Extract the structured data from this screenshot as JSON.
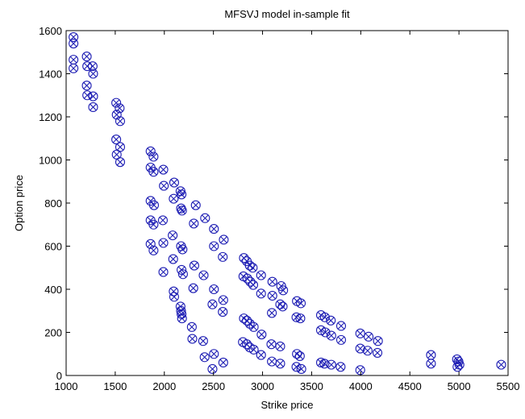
{
  "chart_data": {
    "type": "scatter",
    "title": "MFSVJ model in-sample fit",
    "xlabel": "Strike price",
    "ylabel": "Option price",
    "xlim": [
      1000,
      5500
    ],
    "ylim": [
      0,
      1600
    ],
    "xticks": [
      1000,
      1500,
      2000,
      2500,
      3000,
      3500,
      4000,
      4500,
      5000,
      5500
    ],
    "yticks": [
      0,
      200,
      400,
      600,
      800,
      1000,
      1200,
      1400,
      1600
    ],
    "grid": false,
    "legend": "none",
    "marker": "circle-x",
    "marker_color": "#1f1fb4",
    "series": [
      {
        "points": [
          [
            1075,
            1570
          ],
          [
            1075,
            1540
          ],
          [
            1075,
            1465
          ],
          [
            1075,
            1425
          ],
          [
            1210,
            1480
          ],
          [
            1215,
            1435
          ],
          [
            1210,
            1345
          ],
          [
            1215,
            1300
          ],
          [
            1270,
            1435
          ],
          [
            1275,
            1400
          ],
          [
            1275,
            1295
          ],
          [
            1275,
            1245
          ],
          [
            1510,
            1265
          ],
          [
            1545,
            1240
          ],
          [
            1515,
            1210
          ],
          [
            1550,
            1180
          ],
          [
            1510,
            1095
          ],
          [
            1550,
            1060
          ],
          [
            1515,
            1025
          ],
          [
            1550,
            990
          ],
          [
            1860,
            1040
          ],
          [
            1890,
            1015
          ],
          [
            1860,
            965
          ],
          [
            1890,
            945
          ],
          [
            1990,
            955
          ],
          [
            1995,
            880
          ],
          [
            2100,
            895
          ],
          [
            2165,
            855
          ],
          [
            2175,
            840
          ],
          [
            2095,
            820
          ],
          [
            2170,
            775
          ],
          [
            2180,
            765
          ],
          [
            2320,
            790
          ],
          [
            2415,
            730
          ],
          [
            2300,
            705
          ],
          [
            2505,
            680
          ],
          [
            2605,
            630
          ],
          [
            2505,
            600
          ],
          [
            2595,
            550
          ],
          [
            1860,
            810
          ],
          [
            1895,
            790
          ],
          [
            1860,
            720
          ],
          [
            1890,
            700
          ],
          [
            1985,
            720
          ],
          [
            2085,
            650
          ],
          [
            2170,
            600
          ],
          [
            2185,
            585
          ],
          [
            2090,
            540
          ],
          [
            2175,
            490
          ],
          [
            2190,
            470
          ],
          [
            2305,
            510
          ],
          [
            2400,
            465
          ],
          [
            2295,
            405
          ],
          [
            2505,
            400
          ],
          [
            2600,
            350
          ],
          [
            2490,
            330
          ],
          [
            2595,
            295
          ],
          [
            1860,
            610
          ],
          [
            1890,
            580
          ],
          [
            1990,
            615
          ],
          [
            1990,
            480
          ],
          [
            2095,
            390
          ],
          [
            2100,
            365
          ],
          [
            2165,
            320
          ],
          [
            2170,
            300
          ],
          [
            2175,
            285
          ],
          [
            2180,
            265
          ],
          [
            2280,
            225
          ],
          [
            2285,
            170
          ],
          [
            2395,
            160
          ],
          [
            2505,
            100
          ],
          [
            2410,
            85
          ],
          [
            2600,
            60
          ],
          [
            2490,
            30
          ],
          [
            2810,
            545
          ],
          [
            2840,
            530
          ],
          [
            2870,
            510
          ],
          [
            2900,
            500
          ],
          [
            2985,
            465
          ],
          [
            2805,
            460
          ],
          [
            2845,
            450
          ],
          [
            2875,
            435
          ],
          [
            2905,
            420
          ],
          [
            2985,
            380
          ],
          [
            3100,
            435
          ],
          [
            3190,
            415
          ],
          [
            3210,
            395
          ],
          [
            3100,
            370
          ],
          [
            3180,
            330
          ],
          [
            3205,
            320
          ],
          [
            3095,
            290
          ],
          [
            3350,
            345
          ],
          [
            3390,
            335
          ],
          [
            3345,
            270
          ],
          [
            3385,
            265
          ],
          [
            3595,
            280
          ],
          [
            3635,
            270
          ],
          [
            3695,
            255
          ],
          [
            3800,
            230
          ],
          [
            3595,
            210
          ],
          [
            3640,
            200
          ],
          [
            3700,
            185
          ],
          [
            3800,
            165
          ],
          [
            3995,
            195
          ],
          [
            4080,
            180
          ],
          [
            4175,
            160
          ],
          [
            3995,
            125
          ],
          [
            4070,
            115
          ],
          [
            4170,
            105
          ],
          [
            2810,
            265
          ],
          [
            2840,
            255
          ],
          [
            2870,
            240
          ],
          [
            2910,
            225
          ],
          [
            2990,
            190
          ],
          [
            2800,
            155
          ],
          [
            2840,
            145
          ],
          [
            2870,
            130
          ],
          [
            2910,
            120
          ],
          [
            2985,
            95
          ],
          [
            3090,
            145
          ],
          [
            3180,
            135
          ],
          [
            3095,
            65
          ],
          [
            3180,
            55
          ],
          [
            3350,
            100
          ],
          [
            3380,
            90
          ],
          [
            3345,
            40
          ],
          [
            3395,
            30
          ],
          [
            3595,
            60
          ],
          [
            3630,
            55
          ],
          [
            3700,
            50
          ],
          [
            3795,
            40
          ],
          [
            3995,
            25
          ],
          [
            4715,
            95
          ],
          [
            4715,
            55
          ],
          [
            4980,
            75
          ],
          [
            4995,
            65
          ],
          [
            5005,
            50
          ],
          [
            4985,
            40
          ],
          [
            5430,
            50
          ]
        ]
      }
    ]
  }
}
